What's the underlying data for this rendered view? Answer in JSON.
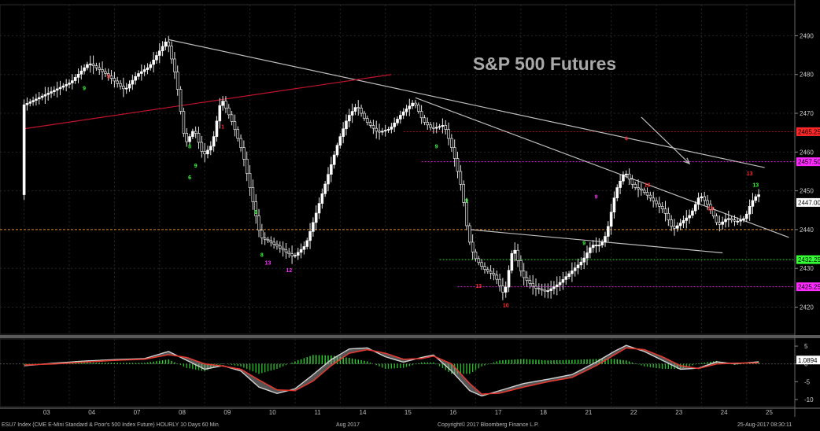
{
  "title": "S&P 500 Futures",
  "footer": {
    "ticker": "ESU7 Index (CME E-Mini Standard & Poor's 500 Index Future) HOURLY 10 Days 60 Min",
    "copyright": "Copyright© 2017 Bloomberg Finance L.P.",
    "timestamp": "25-Aug-2017 08:30:11",
    "month_label": "Aug 2017"
  },
  "colors": {
    "background": "#000000",
    "candle": "#ffffff",
    "trendline": "#bdbdbd",
    "red_trendline": "#c0142a",
    "orange_level": "#ff9a1f",
    "magenta": "#ff2cff",
    "green": "#34ff34",
    "red": "#ff2828",
    "macd_signal": "#e0392f",
    "macd_line": "#c8c8c8"
  },
  "chart_data": [
    {
      "type": "candlestick",
      "title": "S&P 500 Futures",
      "x_tick_labels": [
        "03",
        "04",
        "07",
        "08",
        "09",
        "10",
        "11",
        "14",
        "15",
        "16",
        "17",
        "18",
        "21",
        "22",
        "23",
        "24",
        "25"
      ],
      "y_ticks": [
        2420,
        2430,
        2440,
        2450,
        2460,
        2470,
        2480,
        2490
      ],
      "ylim": [
        2413,
        2498
      ],
      "price_tags": [
        {
          "label": "2465.25",
          "value": 2465.25,
          "color": "#ff2828"
        },
        {
          "label": "2457.50",
          "value": 2457.5,
          "color": "#ff2cff"
        },
        {
          "label": "2447.00",
          "value": 2447.0,
          "color": "#ffffff"
        },
        {
          "label": "2432.25",
          "value": 2432.25,
          "color": "#34ff34"
        },
        {
          "label": "2425.25",
          "value": 2425.25,
          "color": "#ff2cff"
        }
      ],
      "level_lines": [
        {
          "value": 2440.0,
          "color": "#ff9a1f"
        },
        {
          "value": 2465.25,
          "color": "#c0142a"
        },
        {
          "value": 2457.5,
          "color": "#ff2cff"
        },
        {
          "value": 2432.25,
          "color": "#34ff34"
        },
        {
          "value": 2425.25,
          "color": "#ff2cff"
        }
      ],
      "hourly_path": [
        [
          0,
          2472
        ],
        [
          8,
          2475
        ],
        [
          16,
          2478
        ],
        [
          22,
          2483
        ],
        [
          28,
          2480
        ],
        [
          34,
          2476
        ],
        [
          38,
          2480
        ],
        [
          42,
          2482
        ],
        [
          48,
          2489
        ],
        [
          51,
          2479
        ],
        [
          54,
          2462
        ],
        [
          57,
          2466
        ],
        [
          60,
          2459
        ],
        [
          63,
          2462
        ],
        [
          66,
          2474
        ],
        [
          70,
          2467
        ],
        [
          73,
          2460
        ],
        [
          76,
          2449
        ],
        [
          79,
          2438
        ],
        [
          82,
          2437
        ],
        [
          86,
          2435
        ],
        [
          90,
          2433
        ],
        [
          94,
          2436
        ],
        [
          97,
          2443
        ],
        [
          101,
          2453
        ],
        [
          105,
          2463
        ],
        [
          108,
          2469
        ],
        [
          111,
          2472
        ],
        [
          114,
          2468
        ],
        [
          118,
          2465
        ],
        [
          122,
          2466
        ],
        [
          126,
          2470
        ],
        [
          130,
          2473
        ],
        [
          133,
          2468
        ],
        [
          136,
          2466
        ],
        [
          140,
          2467
        ],
        [
          143,
          2460
        ],
        [
          146,
          2450
        ],
        [
          148,
          2438
        ],
        [
          150,
          2433
        ],
        [
          153,
          2430
        ],
        [
          157,
          2428
        ],
        [
          160,
          2423
        ],
        [
          163,
          2436
        ],
        [
          166,
          2428
        ],
        [
          170,
          2425
        ],
        [
          174,
          2424
        ],
        [
          178,
          2426
        ],
        [
          182,
          2429
        ],
        [
          186,
          2432
        ],
        [
          189,
          2436
        ],
        [
          192,
          2436
        ],
        [
          194,
          2439
        ],
        [
          197,
          2450
        ],
        [
          200,
          2455
        ],
        [
          203,
          2451
        ],
        [
          206,
          2450
        ],
        [
          210,
          2447
        ],
        [
          213,
          2445
        ],
        [
          216,
          2440
        ],
        [
          219,
          2442
        ],
        [
          222,
          2444
        ],
        [
          225,
          2449
        ],
        [
          228,
          2446
        ],
        [
          231,
          2441
        ],
        [
          234,
          2443
        ],
        [
          237,
          2442
        ],
        [
          240,
          2443
        ],
        [
          242,
          2447
        ],
        [
          244,
          2449
        ]
      ],
      "trendlines": [
        {
          "from": [
            48,
            2489
          ],
          "to": [
            246,
            2456
          ],
          "color": "#bdbdbd"
        },
        {
          "from": [
            130,
            2474
          ],
          "to": [
            254,
            2438
          ],
          "color": "#bdbdbd"
        },
        {
          "from": [
            148,
            2440
          ],
          "to": [
            232,
            2434
          ],
          "color": "#bdbdbd"
        },
        {
          "from": [
            0,
            2466
          ],
          "to": [
            122,
            2480
          ],
          "color": "#c0142a"
        }
      ],
      "arrow": {
        "from": [
          205,
          2469
        ],
        "to": [
          221,
          2457
        ],
        "color": "#bdbdbd"
      },
      "count_labels": [
        {
          "text": "9",
          "x": 20,
          "v": 2476,
          "color": "#34ff34"
        },
        {
          "text": "9",
          "x": 28,
          "v": 2479,
          "color": "#ff2828"
        },
        {
          "text": "8",
          "x": 55,
          "v": 2461,
          "color": "#34ff34"
        },
        {
          "text": "9",
          "x": 57,
          "v": 2456,
          "color": "#34ff34"
        },
        {
          "text": "6",
          "x": 55,
          "v": 2453,
          "color": "#34ff34"
        },
        {
          "text": "1",
          "x": 66,
          "v": 2466,
          "color": "#ff2828"
        },
        {
          "text": "9",
          "x": 77,
          "v": 2444,
          "color": "#34ff34"
        },
        {
          "text": "8",
          "x": 79,
          "v": 2433,
          "color": "#34ff34"
        },
        {
          "text": "13",
          "x": 81,
          "v": 2431,
          "color": "#ff2cff"
        },
        {
          "text": "12",
          "x": 88,
          "v": 2429,
          "color": "#ff2cff"
        },
        {
          "text": "9",
          "x": 137,
          "v": 2461,
          "color": "#34ff34"
        },
        {
          "text": "9",
          "x": 147,
          "v": 2447,
          "color": "#34ff34"
        },
        {
          "text": "13",
          "x": 151,
          "v": 2425,
          "color": "#ff2828"
        },
        {
          "text": "10",
          "x": 160,
          "v": 2420,
          "color": "#ff2828"
        },
        {
          "text": "9",
          "x": 186,
          "v": 2436,
          "color": "#34ff34"
        },
        {
          "text": "9",
          "x": 190,
          "v": 2448,
          "color": "#ff2cff"
        },
        {
          "text": "4",
          "x": 200,
          "v": 2463,
          "color": "#ff2828"
        },
        {
          "text": "13",
          "x": 207,
          "v": 2451,
          "color": "#ff2828"
        },
        {
          "text": "13",
          "x": 228,
          "v": 2445,
          "color": "#ff2828"
        },
        {
          "text": "13",
          "x": 241,
          "v": 2454,
          "color": "#ff2828"
        },
        {
          "text": "13",
          "x": 243,
          "v": 2451,
          "color": "#34ff34"
        }
      ],
      "day_boundaries": [
        0,
        15,
        30,
        45,
        60,
        75,
        90,
        105,
        120,
        135,
        150,
        165,
        180,
        195,
        210,
        225,
        240
      ],
      "x_range": [
        -8,
        256
      ]
    },
    {
      "type": "bar",
      "title": "MACD",
      "y_ticks": [
        5,
        0,
        -5,
        -10
      ],
      "ylim": [
        -12,
        7
      ],
      "value_tag": {
        "label": "1.0894",
        "value": 1.0894
      },
      "macd_line": [
        [
          0,
          -0.5
        ],
        [
          10,
          0.2
        ],
        [
          20,
          0.8
        ],
        [
          30,
          1.2
        ],
        [
          40,
          1.5
        ],
        [
          48,
          3.5
        ],
        [
          54,
          1.0
        ],
        [
          60,
          -1.5
        ],
        [
          66,
          -0.5
        ],
        [
          72,
          -2.0
        ],
        [
          78,
          -6.5
        ],
        [
          84,
          -8.3
        ],
        [
          90,
          -7.0
        ],
        [
          96,
          -3.0
        ],
        [
          102,
          1.2
        ],
        [
          108,
          4.2
        ],
        [
          114,
          4.5
        ],
        [
          120,
          2.0
        ],
        [
          126,
          0.5
        ],
        [
          132,
          1.8
        ],
        [
          136,
          2.5
        ],
        [
          142,
          -2.0
        ],
        [
          148,
          -7.5
        ],
        [
          152,
          -9.0
        ],
        [
          158,
          -7.5
        ],
        [
          166,
          -5.5
        ],
        [
          174,
          -4.3
        ],
        [
          182,
          -3.0
        ],
        [
          190,
          0.5
        ],
        [
          196,
          3.5
        ],
        [
          200,
          5.2
        ],
        [
          206,
          3.5
        ],
        [
          212,
          1.0
        ],
        [
          218,
          -1.5
        ],
        [
          224,
          -1.2
        ],
        [
          230,
          0.6
        ],
        [
          236,
          0.0
        ],
        [
          244,
          0.6
        ],
        [
          246,
          1.1
        ]
      ],
      "signal_line": [
        [
          0,
          -0.3
        ],
        [
          10,
          0.0
        ],
        [
          20,
          0.5
        ],
        [
          30,
          1.0
        ],
        [
          40,
          1.3
        ],
        [
          48,
          2.6
        ],
        [
          54,
          1.8
        ],
        [
          60,
          0.0
        ],
        [
          66,
          -0.6
        ],
        [
          72,
          -1.5
        ],
        [
          78,
          -4.5
        ],
        [
          84,
          -7.3
        ],
        [
          90,
          -7.5
        ],
        [
          96,
          -4.8
        ],
        [
          102,
          -0.5
        ],
        [
          108,
          3.0
        ],
        [
          114,
          4.0
        ],
        [
          120,
          3.0
        ],
        [
          126,
          1.3
        ],
        [
          132,
          1.5
        ],
        [
          136,
          2.2
        ],
        [
          142,
          0.0
        ],
        [
          148,
          -5.5
        ],
        [
          152,
          -8.5
        ],
        [
          158,
          -8.2
        ],
        [
          166,
          -6.5
        ],
        [
          174,
          -5.0
        ],
        [
          182,
          -3.8
        ],
        [
          190,
          -0.5
        ],
        [
          196,
          2.5
        ],
        [
          200,
          4.5
        ],
        [
          206,
          4.0
        ],
        [
          212,
          2.0
        ],
        [
          218,
          -0.5
        ],
        [
          224,
          -1.3
        ],
        [
          230,
          0.0
        ],
        [
          236,
          0.2
        ],
        [
          244,
          0.3
        ],
        [
          246,
          0.8
        ]
      ]
    }
  ]
}
